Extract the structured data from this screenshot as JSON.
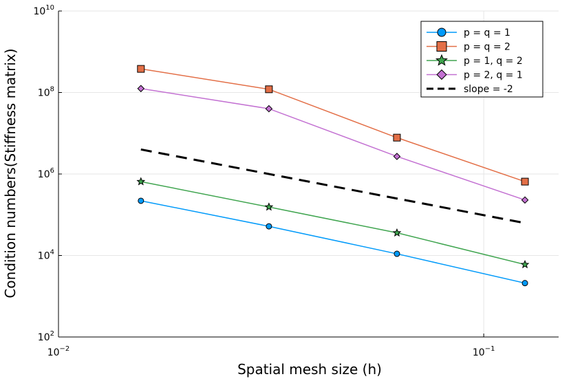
{
  "chart_data": {
    "type": "line",
    "xscale": "log",
    "yscale": "log",
    "xlabel": "Spatial mesh size (h)",
    "ylabel": "Condition numbers(Stiffness matrix)",
    "xlim": [
      0.01,
      0.15
    ],
    "ylim": [
      100,
      10000000000
    ],
    "x_ticks": [
      {
        "value": 0.01,
        "base": "10",
        "exp": "−2"
      },
      {
        "value": 0.1,
        "base": "10",
        "exp": "−1"
      }
    ],
    "y_ticks": [
      {
        "value": 100,
        "base": "10",
        "exp": "2"
      },
      {
        "value": 10000,
        "base": "10",
        "exp": "4"
      },
      {
        "value": 1000000,
        "base": "10",
        "exp": "6"
      },
      {
        "value": 100000000,
        "base": "10",
        "exp": "8"
      },
      {
        "value": 10000000000,
        "base": "10",
        "exp": "10"
      }
    ],
    "grid": true,
    "legend_position": "top-right",
    "x": [
      0.015625,
      0.03125,
      0.0625,
      0.125
    ],
    "series": [
      {
        "name": "p = q = 1",
        "color": "#009AFA",
        "marker": "circle",
        "dash": false,
        "x": [
          0.015625,
          0.03125,
          0.0625,
          0.125
        ],
        "values": [
          220000,
          52000,
          11000,
          2100
        ]
      },
      {
        "name": "p = q = 2",
        "color": "#E36F47",
        "marker": "square",
        "dash": false,
        "x": [
          0.015625,
          0.03125,
          0.0625,
          0.125
        ],
        "values": [
          380000000,
          120000000,
          7800000,
          650000
        ]
      },
      {
        "name": "p = 1, q = 2",
        "color": "#3EA44E",
        "marker": "star",
        "dash": false,
        "x": [
          0.015625,
          0.03125,
          0.0625,
          0.125
        ],
        "values": [
          650000,
          155000,
          36000,
          6000
        ]
      },
      {
        "name": "p = 2, q = 1",
        "color": "#C371D2",
        "marker": "diamond",
        "dash": false,
        "x": [
          0.015625,
          0.03125,
          0.0625,
          0.125
        ],
        "values": [
          125000000,
          40000000,
          2700000,
          230000
        ]
      },
      {
        "name": "slope = -2",
        "color": "#000000",
        "marker": "none",
        "dash": true,
        "x": [
          0.015625,
          0.125
        ],
        "values": [
          4000000,
          62500
        ]
      }
    ]
  }
}
